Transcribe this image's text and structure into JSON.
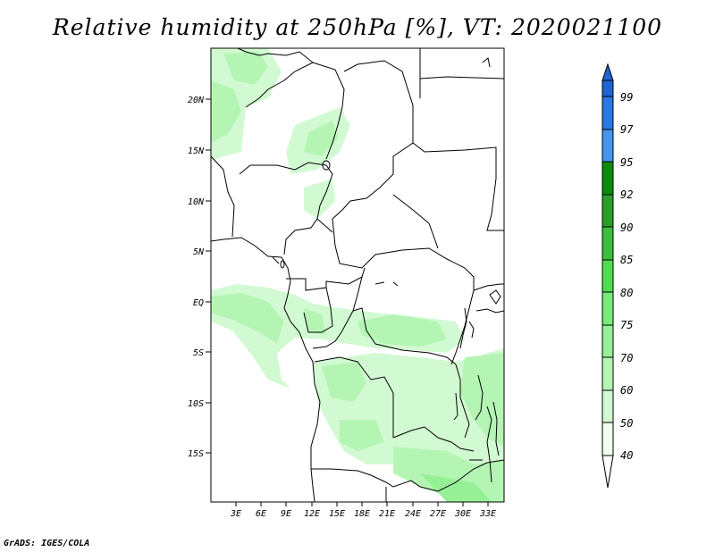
{
  "title": "Relative humidity at 250hPa [%], VT: 2020021100",
  "footer": "GrADS: IGES/COLA",
  "map": {
    "lat_labels": [
      "20N",
      "15N",
      "10N",
      "5N",
      "EQ",
      "5S",
      "10S",
      "15S"
    ],
    "lon_labels": [
      "3E",
      "6E",
      "9E",
      "12E",
      "15E",
      "18E",
      "21E",
      "24E",
      "27E",
      "30E",
      "33E"
    ]
  },
  "colorbar": {
    "levels": [
      "99",
      "97",
      "95",
      "92",
      "90",
      "85",
      "80",
      "75",
      "70",
      "60",
      "50",
      "40"
    ],
    "colors": [
      "#1e64d2",
      "#2878e6",
      "#4696f0",
      "#0a8c0a",
      "#28a028",
      "#3cbe3c",
      "#50dc50",
      "#78eb78",
      "#96f096",
      "#b4f5b4",
      "#d2fad2",
      "#f0fff0"
    ]
  }
}
